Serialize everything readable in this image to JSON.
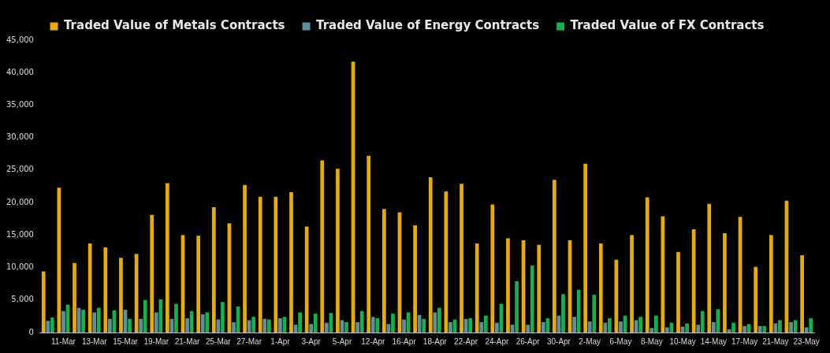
{
  "chart_data": {
    "type": "bar",
    "categories": [
      null,
      "11-Mar",
      null,
      "13-Mar",
      null,
      "15-Mar",
      null,
      "19-Mar",
      null,
      "21-Mar",
      null,
      "25-Mar",
      null,
      "27-Mar",
      null,
      "1-Apr",
      null,
      "3-Apr",
      null,
      "5-Apr",
      null,
      "12-Apr",
      null,
      "16-Apr",
      null,
      "18-Apr",
      null,
      "22-Apr",
      null,
      "24-Apr",
      null,
      "26-Apr",
      null,
      "30-Apr",
      null,
      "2-May",
      null,
      "6-May",
      null,
      "8-May",
      null,
      "10-May",
      null,
      "14-May",
      null,
      "17-May",
      null,
      "21-May",
      null,
      "23-May"
    ],
    "series": [
      {
        "name": "Traded Value of Metals Contracts",
        "color": "#e6ac0f",
        "values": [
          9400,
          22300,
          10700,
          13700,
          13100,
          11500,
          12100,
          18100,
          23000,
          15000,
          14900,
          19300,
          16800,
          22700,
          20900,
          20900,
          21600,
          16300,
          26500,
          25200,
          41700,
          27200,
          19000,
          18500,
          16500,
          23900,
          21700,
          22900,
          13700,
          19700,
          14500,
          14200,
          13500,
          23500,
          14200,
          26000,
          13700,
          11200,
          15000,
          20800,
          17900,
          12400,
          15900,
          19800,
          15300,
          17800,
          10100,
          15000,
          20300,
          11900
        ]
      },
      {
        "name": "Traded Value of Energy Contracts",
        "color": "#5f8f9a",
        "values": [
          1800,
          3300,
          3800,
          3100,
          2100,
          3500,
          2100,
          3100,
          2100,
          2200,
          2800,
          2000,
          1600,
          1900,
          2100,
          2200,
          1200,
          1300,
          1500,
          1900,
          1600,
          2400,
          1300,
          2000,
          2700,
          3100,
          1600,
          2100,
          1600,
          1500,
          1200,
          1200,
          1600,
          2600,
          2400,
          1700,
          1500,
          1700,
          1900,
          700,
          800,
          900,
          1200,
          1600,
          500,
          1000,
          1000,
          1400,
          1600,
          800
        ]
      },
      {
        "name": "Traded Value of FX Contracts",
        "color": "#16b050",
        "values": [
          2300,
          4300,
          3500,
          3800,
          3400,
          2100,
          5000,
          5100,
          4400,
          3300,
          3100,
          4700,
          4000,
          2400,
          2000,
          2400,
          3100,
          2900,
          3000,
          1600,
          3300,
          2200,
          2900,
          3100,
          2100,
          3800,
          2000,
          2200,
          2600,
          4400,
          7900,
          10300,
          2200,
          5900,
          6600,
          5800,
          2200,
          2600,
          2400,
          2600,
          1500,
          1400,
          3300,
          3600,
          1500,
          1300,
          1000,
          1900,
          1900,
          2200
        ]
      }
    ],
    "ylim": [
      0,
      45000
    ],
    "yticks": [
      0,
      {
        "value": 5000,
        "label": "5,000"
      },
      {
        "value": 10000,
        "label": "10,000"
      },
      {
        "value": 15000,
        "label": "15,000"
      },
      {
        "value": 20000,
        "label": "20,000"
      },
      {
        "value": 25000,
        "label": "25,000"
      },
      {
        "value": 30000,
        "label": "30,000"
      },
      {
        "value": 35000,
        "label": "35,000"
      },
      {
        "value": 40000,
        "label": "40,000"
      },
      {
        "value": 45000,
        "label": "45,000"
      }
    ],
    "grid": false,
    "legend": "top"
  }
}
